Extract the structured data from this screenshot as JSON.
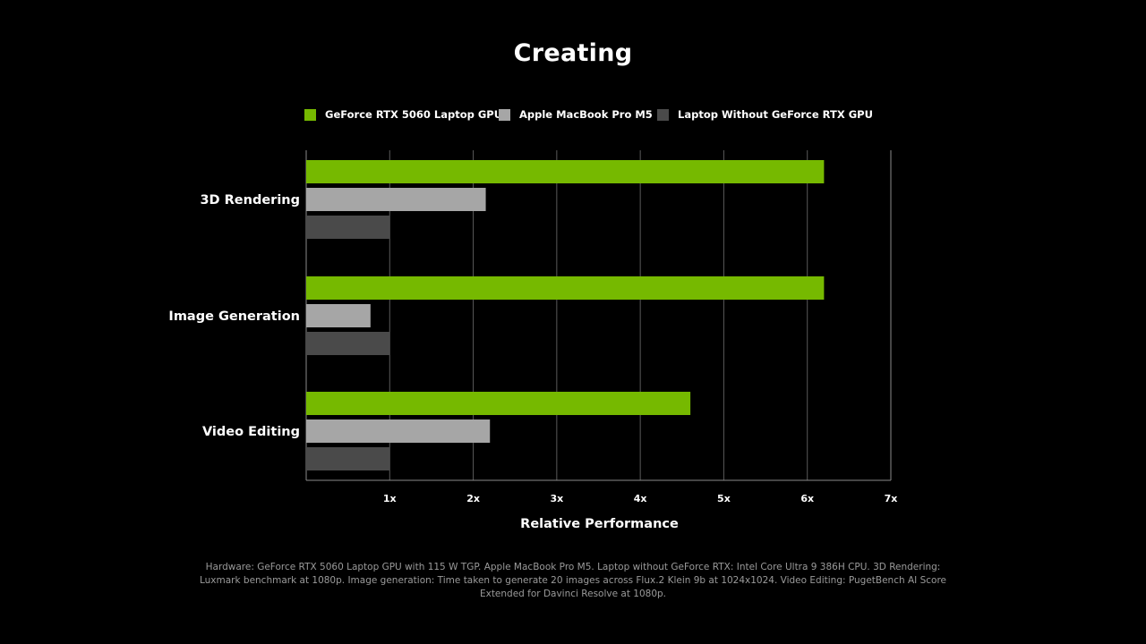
{
  "colors": {
    "background": "#000000",
    "grid": "#5a5a5a",
    "axis": "#8a8a8a",
    "text": "#ffffff",
    "footnote": "#9a9a9a"
  },
  "chart_data": {
    "type": "bar",
    "orientation": "horizontal",
    "title": "Creating",
    "xlabel": "Relative Performance",
    "ylabel": "",
    "categories": [
      "3D Rendering",
      "Image Generation",
      "Video Editing"
    ],
    "series": [
      {
        "name": "GeForce RTX 5060 Laptop GPU",
        "color": "#76b900",
        "values": [
          6.2,
          6.2,
          4.6
        ]
      },
      {
        "name": "Apple MacBook Pro M5",
        "color": "#a6a6a6",
        "values": [
          2.15,
          0.77,
          2.2
        ]
      },
      {
        "name": "Laptop Without GeForce RTX GPU",
        "color": "#4a4a4a",
        "values": [
          1.0,
          1.0,
          1.0
        ]
      }
    ],
    "xlim": [
      0,
      7
    ],
    "xticks": [
      1,
      2,
      3,
      4,
      5,
      6,
      7
    ],
    "xtick_labels": [
      "1x",
      "2x",
      "3x",
      "4x",
      "5x",
      "6x",
      "7x"
    ],
    "grid": true,
    "legend_position": "top"
  },
  "footnote": "Hardware: GeForce RTX 5060 Laptop GPU with 115 W TGP. Apple MacBook Pro M5. Laptop without GeForce RTX: Intel Core Ultra 9 386H CPU. 3D Rendering: Luxmark benchmark at 1080p. Image generation: Time taken to generate 20 images across Flux.2 Klein 9b at 1024x1024. Video Editing: PugetBench AI Score Extended for Davinci Resolve at 1080p."
}
